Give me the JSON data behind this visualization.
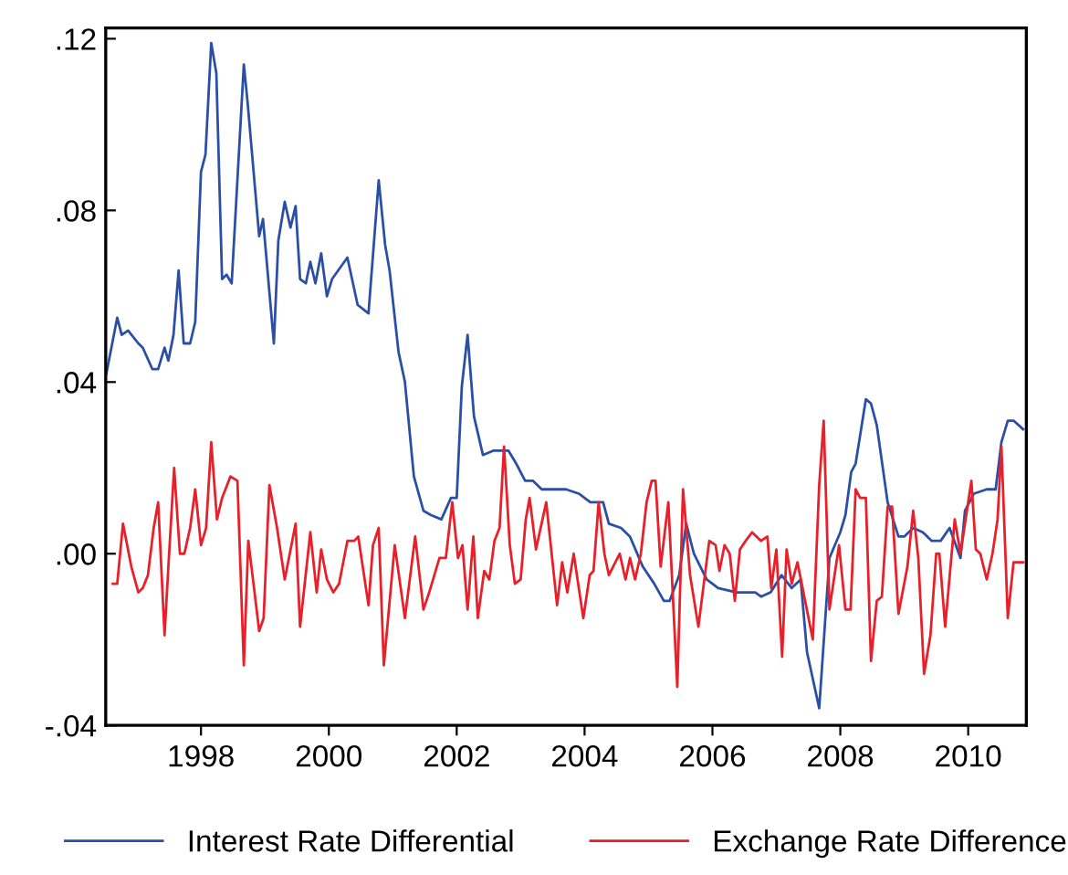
{
  "chart_data": {
    "type": "line",
    "xlim": [
      1996.51,
      2010.91
    ],
    "xticks": [
      1998,
      2000,
      2002,
      2004,
      2006,
      2008,
      2010
    ],
    "ylim": [
      -0.04,
      0.1225
    ],
    "yticks": [
      {
        "value": 0.12,
        "label": ".12"
      },
      {
        "value": 0.08,
        "label": ".08"
      },
      {
        "value": 0.04,
        "label": ".04"
      },
      {
        "value": 0.0,
        "label": ".00"
      },
      {
        "value": -0.04,
        "label": "-.04"
      }
    ],
    "grid": false,
    "legend": "bottom",
    "series": [
      {
        "name": "Interest Rate Differential",
        "color": "#2a4fa5",
        "x": [
          1996.52,
          1996.69,
          1996.76,
          1996.86,
          1997.02,
          1997.09,
          1997.24,
          1997.33,
          1997.43,
          1997.49,
          1997.57,
          1997.65,
          1997.73,
          1997.83,
          1997.91,
          1998.0,
          1998.07,
          1998.16,
          1998.24,
          1998.33,
          1998.4,
          1998.48,
          1998.67,
          1998.73,
          1998.91,
          1998.97,
          1999.14,
          1999.21,
          1999.31,
          1999.4,
          1999.48,
          1999.55,
          1999.64,
          1999.71,
          1999.79,
          1999.88,
          1999.97,
          2000.05,
          2000.29,
          2000.45,
          2000.62,
          2000.78,
          2000.88,
          2000.95,
          2001.09,
          2001.19,
          2001.33,
          2001.48,
          2001.6,
          2001.76,
          2001.91,
          2002.0,
          2002.08,
          2002.17,
          2002.27,
          2002.41,
          2002.57,
          2002.81,
          2002.93,
          2003.07,
          2003.19,
          2003.33,
          2003.52,
          2003.71,
          2003.91,
          2004.09,
          2004.29,
          2004.38,
          2004.57,
          2004.71,
          2004.91,
          2005.09,
          2005.24,
          2005.33,
          2005.48,
          2005.59,
          2005.71,
          2005.91,
          2006.09,
          2006.38,
          2006.67,
          2006.76,
          2006.91,
          2007.08,
          2007.24,
          2007.38,
          2007.48,
          2007.67,
          2007.83,
          2008.0,
          2008.08,
          2008.17,
          2008.24,
          2008.4,
          2008.48,
          2008.57,
          2008.74,
          2008.91,
          2009.0,
          2009.14,
          2009.29,
          2009.43,
          2009.57,
          2009.71,
          2009.88,
          2009.95,
          2010.09,
          2010.29,
          2010.43,
          2010.52,
          2010.62,
          2010.71,
          2010.86
        ],
        "values": [
          0.042,
          0.055,
          0.051,
          0.052,
          0.049,
          0.048,
          0.043,
          0.043,
          0.048,
          0.045,
          0.051,
          0.066,
          0.049,
          0.049,
          0.054,
          0.089,
          0.093,
          0.119,
          0.112,
          0.064,
          0.065,
          0.063,
          0.114,
          0.105,
          0.074,
          0.078,
          0.049,
          0.073,
          0.082,
          0.076,
          0.081,
          0.064,
          0.063,
          0.068,
          0.063,
          0.07,
          0.06,
          0.064,
          0.069,
          0.058,
          0.056,
          0.087,
          0.072,
          0.066,
          0.047,
          0.04,
          0.018,
          0.01,
          0.009,
          0.008,
          0.013,
          0.013,
          0.039,
          0.051,
          0.032,
          0.023,
          0.024,
          0.024,
          0.021,
          0.017,
          0.017,
          0.015,
          0.015,
          0.015,
          0.014,
          0.012,
          0.012,
          0.007,
          0.006,
          0.004,
          -0.003,
          -0.007,
          -0.011,
          -0.011,
          -0.005,
          0.007,
          0.0,
          -0.006,
          -0.008,
          -0.009,
          -0.009,
          -0.01,
          -0.009,
          -0.005,
          -0.008,
          -0.006,
          -0.023,
          -0.036,
          -0.001,
          0.005,
          0.009,
          0.019,
          0.021,
          0.036,
          0.035,
          0.03,
          0.012,
          0.004,
          0.004,
          0.006,
          0.005,
          0.003,
          0.003,
          0.006,
          -0.001,
          0.01,
          0.014,
          0.015,
          0.015,
          0.026,
          0.031,
          0.031,
          0.029
        ]
      },
      {
        "name": "Exchange Rate Difference",
        "color": "#e8202a",
        "x": [
          1996.62,
          1996.69,
          1996.78,
          1996.91,
          1997.02,
          1997.09,
          1997.17,
          1997.26,
          1997.33,
          1997.43,
          1997.49,
          1997.58,
          1997.67,
          1997.74,
          1997.83,
          1997.91,
          1998.0,
          1998.08,
          1998.16,
          1998.25,
          1998.33,
          1998.46,
          1998.57,
          1998.67,
          1998.74,
          1998.83,
          1998.91,
          1998.98,
          1999.07,
          1999.19,
          1999.31,
          1999.48,
          1999.55,
          1999.71,
          1999.81,
          1999.88,
          1999.97,
          2000.07,
          2000.16,
          2000.29,
          2000.4,
          2000.46,
          2000.62,
          2000.69,
          2000.78,
          2000.86,
          2001.03,
          2001.19,
          2001.35,
          2001.48,
          2001.57,
          2001.73,
          2001.83,
          2001.93,
          2002.02,
          2002.09,
          2002.17,
          2002.26,
          2002.33,
          2002.43,
          2002.51,
          2002.59,
          2002.67,
          2002.74,
          2002.83,
          2002.91,
          2003.0,
          2003.08,
          2003.14,
          2003.24,
          2003.4,
          2003.57,
          2003.65,
          2003.73,
          2003.83,
          2003.98,
          2004.08,
          2004.14,
          2004.22,
          2004.31,
          2004.38,
          2004.55,
          2004.64,
          2004.71,
          2004.79,
          2004.88,
          2004.97,
          2005.05,
          2005.11,
          2005.19,
          2005.31,
          2005.45,
          2005.54,
          2005.65,
          2005.78,
          2005.95,
          2006.05,
          2006.11,
          2006.19,
          2006.27,
          2006.35,
          2006.43,
          2006.52,
          2006.62,
          2006.76,
          2006.86,
          2006.92,
          2007.0,
          2007.09,
          2007.16,
          2007.24,
          2007.33,
          2007.57,
          2007.67,
          2007.74,
          2007.83,
          2007.98,
          2008.08,
          2008.16,
          2008.24,
          2008.31,
          2008.4,
          2008.48,
          2008.57,
          2008.65,
          2008.74,
          2008.81,
          2008.91,
          2009.05,
          2009.14,
          2009.22,
          2009.31,
          2009.41,
          2009.5,
          2009.55,
          2009.64,
          2009.79,
          2009.88,
          2010.05,
          2010.12,
          2010.19,
          2010.29,
          2010.38,
          2010.46,
          2010.52,
          2010.62,
          2010.71,
          2010.86
        ],
        "values": [
          -0.007,
          -0.007,
          0.007,
          -0.003,
          -0.009,
          -0.008,
          -0.005,
          0.006,
          0.012,
          -0.019,
          -0.003,
          0.02,
          0.0,
          0.0,
          0.006,
          0.015,
          0.002,
          0.006,
          0.026,
          0.008,
          0.013,
          0.018,
          0.017,
          -0.026,
          0.003,
          -0.008,
          -0.018,
          -0.015,
          0.016,
          0.006,
          -0.006,
          0.007,
          -0.017,
          0.005,
          -0.009,
          0.001,
          -0.006,
          -0.009,
          -0.007,
          0.003,
          0.003,
          0.004,
          -0.012,
          0.002,
          0.006,
          -0.026,
          0.002,
          -0.015,
          0.004,
          -0.013,
          -0.009,
          -0.001,
          -0.001,
          0.012,
          -0.001,
          0.002,
          -0.013,
          0.004,
          -0.015,
          -0.004,
          -0.006,
          0.003,
          0.006,
          0.025,
          0.002,
          -0.007,
          -0.006,
          0.008,
          0.013,
          0.001,
          0.012,
          -0.012,
          -0.002,
          -0.009,
          0.0,
          -0.015,
          -0.005,
          -0.004,
          0.012,
          0.0,
          -0.005,
          0.0,
          -0.006,
          -0.001,
          -0.006,
          0.0,
          0.012,
          0.017,
          0.017,
          -0.003,
          0.012,
          -0.031,
          0.015,
          -0.005,
          -0.017,
          0.003,
          0.002,
          -0.004,
          0.002,
          0.0,
          -0.011,
          0.001,
          0.003,
          0.005,
          0.003,
          0.004,
          -0.008,
          0.001,
          -0.024,
          0.001,
          -0.007,
          -0.002,
          -0.02,
          0.016,
          0.031,
          -0.013,
          0.002,
          -0.013,
          -0.013,
          0.015,
          0.013,
          0.013,
          -0.025,
          -0.011,
          -0.01,
          0.011,
          0.011,
          -0.014,
          -0.003,
          0.01,
          -0.001,
          -0.028,
          -0.019,
          0.0,
          0.0,
          -0.017,
          0.008,
          0.0,
          0.017,
          0.001,
          0.0,
          -0.006,
          0.0,
          0.008,
          0.025,
          -0.015,
          -0.002,
          -0.002
        ]
      }
    ]
  }
}
